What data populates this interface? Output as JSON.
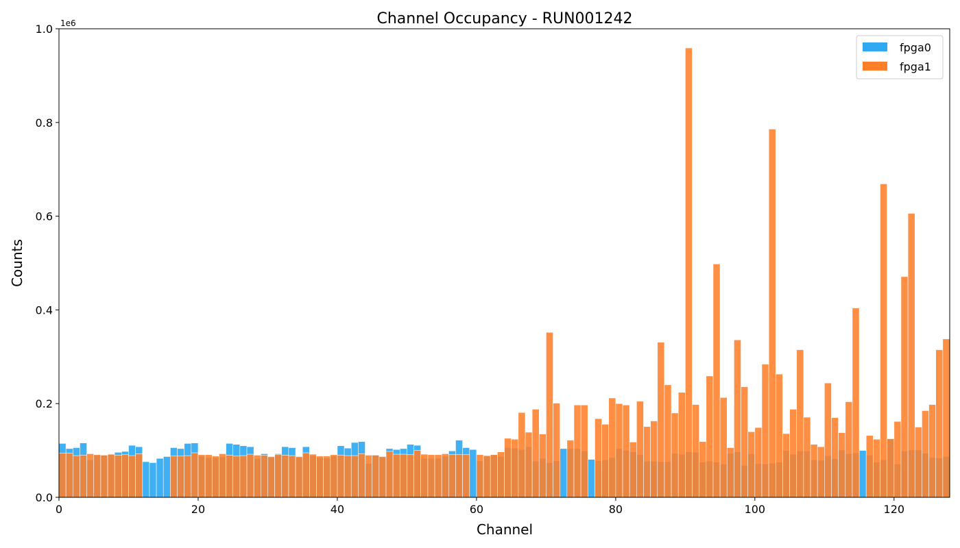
{
  "chart_data": {
    "type": "bar",
    "title": "Channel Occupancy - RUN001242",
    "xlabel": "Channel",
    "ylabel": "Counts",
    "y_offset_label": "1e6",
    "xlim": [
      0,
      128
    ],
    "ylim": [
      0,
      1.0
    ],
    "y_unit_multiplier": 1000000,
    "x_ticks": [
      0,
      20,
      40,
      60,
      80,
      100,
      120
    ],
    "x_tick_labels": [
      "0",
      "20",
      "40",
      "60",
      "80",
      "100",
      "120"
    ],
    "y_ticks": [
      0,
      0.2,
      0.4,
      0.6,
      0.8,
      1.0
    ],
    "y_tick_labels": [
      "0.0",
      "0.2",
      "0.4",
      "0.6",
      "0.8",
      "1.0"
    ],
    "grid": false,
    "legend_position": "top-right",
    "series": [
      {
        "name": "fpga0",
        "color": "#2ea9f2",
        "values": [
          0.115,
          0.104,
          0.106,
          0.116,
          0.08,
          0.09,
          0.09,
          0.091,
          0.096,
          0.098,
          0.111,
          0.108,
          0.076,
          0.074,
          0.083,
          0.087,
          0.106,
          0.104,
          0.115,
          0.116,
          0.088,
          0.085,
          0.085,
          0.086,
          0.115,
          0.113,
          0.11,
          0.108,
          0.083,
          0.093,
          0.085,
          0.093,
          0.108,
          0.106,
          0.085,
          0.108,
          0.089,
          0.085,
          0.084,
          0.088,
          0.11,
          0.105,
          0.117,
          0.119,
          0.072,
          0.09,
          0.086,
          0.104,
          0.102,
          0.104,
          0.113,
          0.111,
          0.083,
          0.083,
          0.083,
          0.088,
          0.099,
          0.122,
          0.106,
          0.102,
          0.078,
          0.088,
          0.091,
          0.087,
          0.106,
          0.105,
          0.102,
          0.108,
          0.077,
          0.083,
          0.074,
          0.078,
          0.104,
          0.104,
          0.104,
          0.099,
          0.081,
          0.078,
          0.08,
          0.085,
          0.104,
          0.1,
          0.097,
          0.091,
          0.077,
          0.077,
          0.076,
          0.076,
          0.094,
          0.092,
          0.097,
          0.096,
          0.075,
          0.077,
          0.075,
          0.071,
          0.094,
          0.097,
          0.068,
          0.093,
          0.072,
          0.071,
          0.073,
          0.075,
          0.1,
          0.092,
          0.099,
          0.099,
          0.08,
          0.079,
          0.089,
          0.082,
          0.101,
          0.093,
          0.095,
          0.1,
          0.09,
          0.075,
          0.08,
          0.125,
          0.071,
          0.099,
          0.101,
          0.101,
          0.094,
          0.085,
          0.084,
          0.087
        ]
      },
      {
        "name": "fpga1",
        "color": "#ff7f2a",
        "values": [
          0.094,
          0.094,
          0.089,
          0.09,
          0.093,
          0.091,
          0.09,
          0.092,
          0.09,
          0.091,
          0.089,
          0.093,
          0.0,
          0.0,
          0.0,
          0.0,
          0.088,
          0.088,
          0.089,
          0.095,
          0.091,
          0.091,
          0.088,
          0.093,
          0.09,
          0.088,
          0.089,
          0.092,
          0.09,
          0.09,
          0.087,
          0.091,
          0.09,
          0.089,
          0.087,
          0.095,
          0.092,
          0.088,
          0.088,
          0.091,
          0.09,
          0.089,
          0.089,
          0.093,
          0.09,
          0.09,
          0.087,
          0.098,
          0.092,
          0.092,
          0.091,
          0.1,
          0.092,
          0.091,
          0.091,
          0.093,
          0.091,
          0.091,
          0.091,
          0.0,
          0.091,
          0.089,
          0.091,
          0.097,
          0.126,
          0.124,
          0.181,
          0.139,
          0.188,
          0.135,
          0.352,
          0.201,
          0.0,
          0.122,
          0.197,
          0.197,
          0.0,
          0.168,
          0.156,
          0.212,
          0.2,
          0.197,
          0.118,
          0.205,
          0.151,
          0.163,
          0.331,
          0.24,
          0.18,
          0.224,
          0.959,
          0.198,
          0.119,
          0.259,
          0.498,
          0.213,
          0.106,
          0.336,
          0.236,
          0.14,
          0.149,
          0.284,
          0.786,
          0.263,
          0.136,
          0.188,
          0.315,
          0.171,
          0.113,
          0.108,
          0.244,
          0.17,
          0.138,
          0.204,
          0.404,
          0.0,
          0.132,
          0.124,
          0.669,
          0.125,
          0.162,
          0.471,
          0.606,
          0.15,
          0.185,
          0.198,
          0.315,
          0.338
        ]
      }
    ]
  }
}
